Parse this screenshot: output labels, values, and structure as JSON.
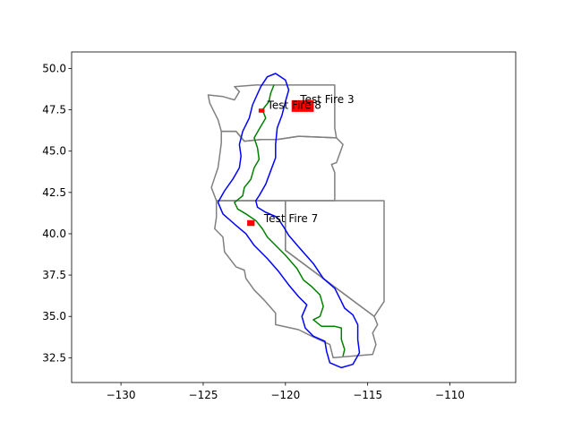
{
  "chart_data": {
    "type": "map",
    "title": "",
    "xlabel": "",
    "ylabel": "",
    "xlim": [
      -133,
      -106
    ],
    "ylim": [
      31,
      51
    ],
    "x_ticks": [
      -130,
      -125,
      -120,
      -115,
      -110
    ],
    "x_tick_labels": [
      "−130",
      "−125",
      "−120",
      "−115",
      "−110"
    ],
    "y_ticks": [
      32.5,
      35.0,
      37.5,
      40.0,
      42.5,
      45.0,
      47.5,
      50.0
    ],
    "y_tick_labels": [
      "32.5",
      "35.0",
      "37.5",
      "40.0",
      "42.5",
      "45.0",
      "47.5",
      "50.0"
    ],
    "colors": {
      "state_boundaries": "#808080",
      "corridor_buffer": "#0000ff",
      "route_line": "#008000",
      "fire_polygons": "#ff0000"
    },
    "state_boundaries": {
      "name": "state boundaries",
      "rings": [
        [
          [
            -123.1,
            48.9
          ],
          [
            -121.8,
            49
          ],
          [
            -117,
            49
          ],
          [
            -117,
            46.4
          ],
          [
            -116.9,
            45.8
          ],
          [
            -119.2,
            45.9
          ],
          [
            -120.5,
            45.7
          ],
          [
            -121.5,
            45.7
          ],
          [
            -122.5,
            45.6
          ],
          [
            -123,
            46.2
          ],
          [
            -123.9,
            46.2
          ],
          [
            -124.1,
            46.9
          ],
          [
            -124.6,
            47.9
          ],
          [
            -124.7,
            48.4
          ],
          [
            -123.8,
            48.3
          ],
          [
            -123.1,
            48.1
          ],
          [
            -122.8,
            48.6
          ],
          [
            -123.1,
            48.9
          ]
        ],
        [
          [
            -123.9,
            46.2
          ],
          [
            -123,
            46.2
          ],
          [
            -122.5,
            45.6
          ],
          [
            -121.5,
            45.7
          ],
          [
            -120.5,
            45.7
          ],
          [
            -119.2,
            45.9
          ],
          [
            -116.9,
            45.8
          ],
          [
            -116.5,
            45.4
          ],
          [
            -116.9,
            44.3
          ],
          [
            -117.2,
            44.2
          ],
          [
            -117,
            43.7
          ],
          [
            -117,
            42
          ],
          [
            -120,
            42
          ],
          [
            -124.2,
            42
          ],
          [
            -124.5,
            42.8
          ],
          [
            -124.3,
            43.4
          ],
          [
            -124.1,
            44
          ],
          [
            -124,
            44.7
          ],
          [
            -123.9,
            45.5
          ],
          [
            -123.9,
            46.2
          ]
        ],
        [
          [
            -124.2,
            42
          ],
          [
            -120,
            42
          ],
          [
            -120,
            39
          ],
          [
            -114.6,
            35
          ],
          [
            -114.4,
            34.5
          ],
          [
            -114.7,
            34
          ],
          [
            -114.5,
            33.3
          ],
          [
            -114.7,
            32.7
          ],
          [
            -117.1,
            32.5
          ],
          [
            -117.3,
            33.3
          ],
          [
            -118.4,
            33.8
          ],
          [
            -119.2,
            34.2
          ],
          [
            -120.6,
            34.5
          ],
          [
            -120.6,
            35.2
          ],
          [
            -121.3,
            36
          ],
          [
            -121.9,
            36.6
          ],
          [
            -122.4,
            37.3
          ],
          [
            -122.5,
            37.8
          ],
          [
            -123,
            38
          ],
          [
            -123.7,
            38.9
          ],
          [
            -123.8,
            39.8
          ],
          [
            -124.3,
            40.3
          ],
          [
            -124.2,
            41
          ],
          [
            -124.2,
            42
          ]
        ],
        [
          [
            -120,
            42
          ],
          [
            -114,
            42
          ],
          [
            -114,
            35.9
          ],
          [
            -114.6,
            35
          ],
          [
            -120,
            39
          ],
          [
            -120,
            42
          ]
        ]
      ]
    },
    "route": {
      "name": "route",
      "points": [
        [
          -120.7,
          49
        ],
        [
          -120.9,
          48.5
        ],
        [
          -121,
          48
        ],
        [
          -121.4,
          47.5
        ],
        [
          -121.2,
          47
        ],
        [
          -121.5,
          46.5
        ],
        [
          -121.9,
          45.8
        ],
        [
          -121.7,
          45.2
        ],
        [
          -121.6,
          44.5
        ],
        [
          -121.9,
          44
        ],
        [
          -122.1,
          43.3
        ],
        [
          -122.5,
          42.8
        ],
        [
          -122.6,
          42.3
        ],
        [
          -123.1,
          41.9
        ],
        [
          -122.9,
          41.5
        ],
        [
          -122.4,
          41.2
        ],
        [
          -121.8,
          40.8
        ],
        [
          -121.4,
          40.3
        ],
        [
          -121.1,
          39.8
        ],
        [
          -120.6,
          39.3
        ],
        [
          -120,
          38.7
        ],
        [
          -119.3,
          37.9
        ],
        [
          -118.9,
          37.2
        ],
        [
          -118.4,
          36.8
        ],
        [
          -117.9,
          36.3
        ],
        [
          -117.7,
          35.6
        ],
        [
          -117.9,
          35
        ],
        [
          -118.3,
          34.8
        ],
        [
          -117.8,
          34.4
        ],
        [
          -117,
          34.4
        ],
        [
          -116.6,
          34.3
        ],
        [
          -116.6,
          33.6
        ],
        [
          -116.4,
          33
        ],
        [
          -116.5,
          32.6
        ]
      ]
    },
    "corridor_buffer": {
      "name": "corridor buffer",
      "points": [
        [
          -121.5,
          48.9
        ],
        [
          -121.1,
          49.5
        ],
        [
          -120.6,
          49.7
        ],
        [
          -120,
          49.3
        ],
        [
          -119.8,
          48.7
        ],
        [
          -120,
          48
        ],
        [
          -120.2,
          47.2
        ],
        [
          -120.5,
          46.4
        ],
        [
          -120.6,
          45.4
        ],
        [
          -120.6,
          44.6
        ],
        [
          -120.9,
          43.8
        ],
        [
          -121.2,
          43
        ],
        [
          -121.6,
          42.3
        ],
        [
          -121.8,
          42
        ],
        [
          -121.7,
          41.6
        ],
        [
          -121.2,
          41.3
        ],
        [
          -120.5,
          41
        ],
        [
          -120.1,
          40.4
        ],
        [
          -119.8,
          39.9
        ],
        [
          -119.1,
          39.1
        ],
        [
          -118.3,
          38.2
        ],
        [
          -117.7,
          37.3
        ],
        [
          -117,
          36.7
        ],
        [
          -116.6,
          35.9
        ],
        [
          -116.4,
          35.5
        ],
        [
          -115.9,
          35.1
        ],
        [
          -115.6,
          34.5
        ],
        [
          -115.6,
          33.6
        ],
        [
          -115.5,
          32.8
        ],
        [
          -115.9,
          32.1
        ],
        [
          -116.6,
          31.9
        ],
        [
          -117.3,
          32.2
        ],
        [
          -117.5,
          32.9
        ],
        [
          -117.6,
          33.5
        ],
        [
          -118.3,
          33.8
        ],
        [
          -118.8,
          34.3
        ],
        [
          -119,
          35
        ],
        [
          -118.7,
          35.7
        ],
        [
          -119.2,
          36.2
        ],
        [
          -119.8,
          36.9
        ],
        [
          -120.4,
          37.7
        ],
        [
          -121.1,
          38.5
        ],
        [
          -121.9,
          39.3
        ],
        [
          -122.4,
          40
        ],
        [
          -123,
          40.5
        ],
        [
          -123.8,
          41.2
        ],
        [
          -124.1,
          41.9
        ],
        [
          -123.7,
          42.6
        ],
        [
          -123.2,
          43.3
        ],
        [
          -122.8,
          44
        ],
        [
          -122.7,
          44.7
        ],
        [
          -122.8,
          45.4
        ],
        [
          -122.6,
          46.2
        ],
        [
          -122.2,
          47
        ],
        [
          -122,
          47.8
        ],
        [
          -121.5,
          48.9
        ]
      ]
    },
    "fires": [
      {
        "name": "Test Fire 3",
        "label": "Test Fire 3",
        "polygon": [
          [
            -119.6,
            48.05
          ],
          [
            -118.3,
            48.05
          ],
          [
            -118.3,
            47.4
          ],
          [
            -119.6,
            47.4
          ]
        ]
      },
      {
        "name": "Test Fire 8",
        "label": "Test Fire 8",
        "polygon": [
          [
            -121.6,
            47.55
          ],
          [
            -121.3,
            47.55
          ],
          [
            -121.3,
            47.35
          ],
          [
            -121.6,
            47.35
          ]
        ]
      },
      {
        "name": "Test Fire 7",
        "label": "Test Fire 7",
        "polygon": [
          [
            -122.3,
            40.8
          ],
          [
            -121.9,
            40.8
          ],
          [
            -121.9,
            40.5
          ],
          [
            -122.3,
            40.5
          ]
        ]
      }
    ]
  }
}
